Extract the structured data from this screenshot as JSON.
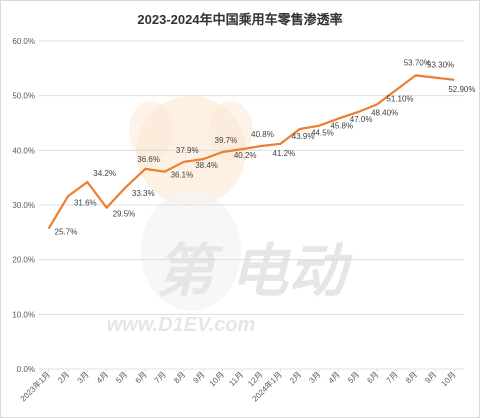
{
  "chart_data": {
    "type": "line",
    "title": "2023-2024年中国乘用车零售渗透率",
    "categories": [
      "2023年1月",
      "2月",
      "3月",
      "4月",
      "5月",
      "6月",
      "7月",
      "8月",
      "9月",
      "10月",
      "11月",
      "12月",
      "2024年1月",
      "2月",
      "3月",
      "4月",
      "5月",
      "6月",
      "7月",
      "8月",
      "9月",
      "10月"
    ],
    "series": [
      {
        "values": [
          25.7,
          31.6,
          34.2,
          29.5,
          33.3,
          36.6,
          36.1,
          37.9,
          38.4,
          39.7,
          40.2,
          40.8,
          41.2,
          43.9,
          44.5,
          45.8,
          47.0,
          48.4,
          51.1,
          53.7,
          53.3,
          52.9
        ]
      }
    ],
    "data_labels": [
      "25.7%",
      "31.6%",
      "34.2%",
      "29.5%",
      "33.3%",
      "36.6%",
      "36.1%",
      "37.9%",
      "38.4%",
      "39.7%",
      "40.2%",
      "40.8%",
      "41.2%",
      "43.9%",
      "44.5%",
      "45.8%",
      "47.0%",
      "48.40%",
      "51.10%",
      "53.70%",
      "53.30%",
      "52.90%"
    ],
    "yticks": [
      "0.0%",
      "10.0%",
      "20.0%",
      "30.0%",
      "40.0%",
      "50.0%",
      "60.0%"
    ],
    "ylim": [
      0,
      60
    ],
    "grid": true,
    "line_color": "#ed7d31",
    "grid_color": "#d9d9d9"
  },
  "watermark": {
    "text": "www.D1EV.com",
    "chars": "第 电动"
  }
}
